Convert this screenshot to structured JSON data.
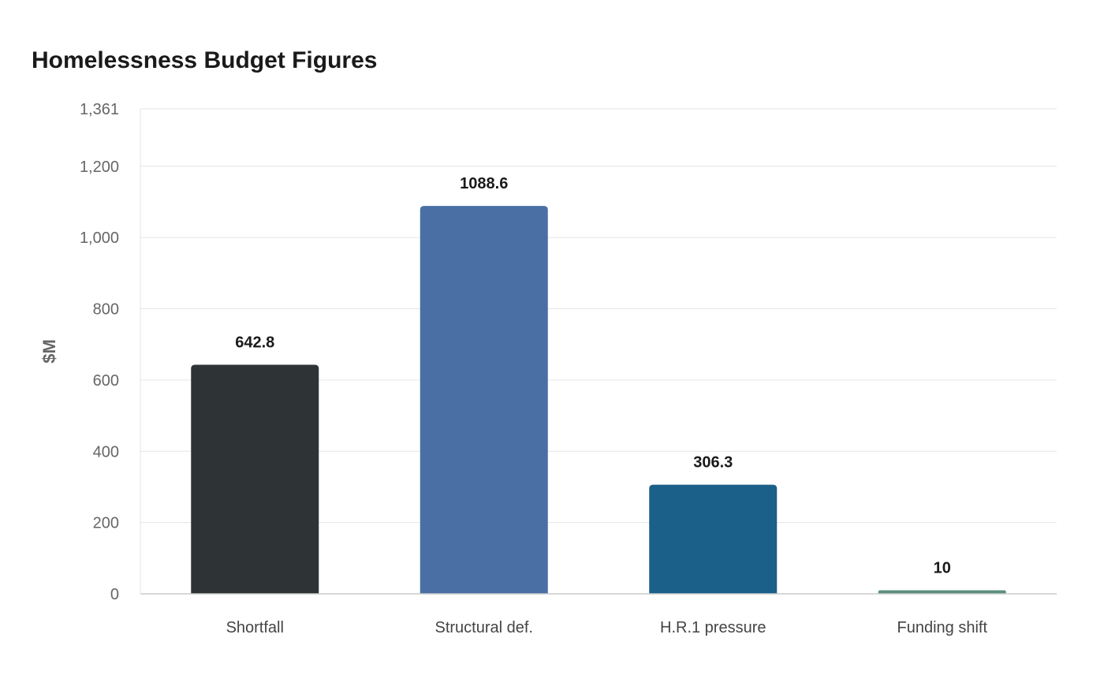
{
  "chart_data": {
    "type": "bar",
    "title": "Homelessness Budget Figures",
    "xlabel": "",
    "ylabel": "$M",
    "categories": [
      "Shortfall",
      "Structural def.",
      "H.R.1 pressure",
      "Funding shift"
    ],
    "values": [
      642.8,
      1088.6,
      306.3,
      10
    ],
    "value_labels": [
      "642.8",
      "1088.6",
      "306.3",
      "10"
    ],
    "colors": [
      "#2e3436",
      "#4a6fa5",
      "#1a6088",
      "#5a8f7b"
    ],
    "ylim": [
      0,
      1361
    ],
    "yticks": [
      0,
      200,
      400,
      600,
      800,
      1000,
      1200,
      1361
    ],
    "ytick_labels": [
      "0",
      "200",
      "400",
      "600",
      "800",
      "1,000",
      "1,200",
      "1,361"
    ],
    "grid": true,
    "legend": false
  }
}
